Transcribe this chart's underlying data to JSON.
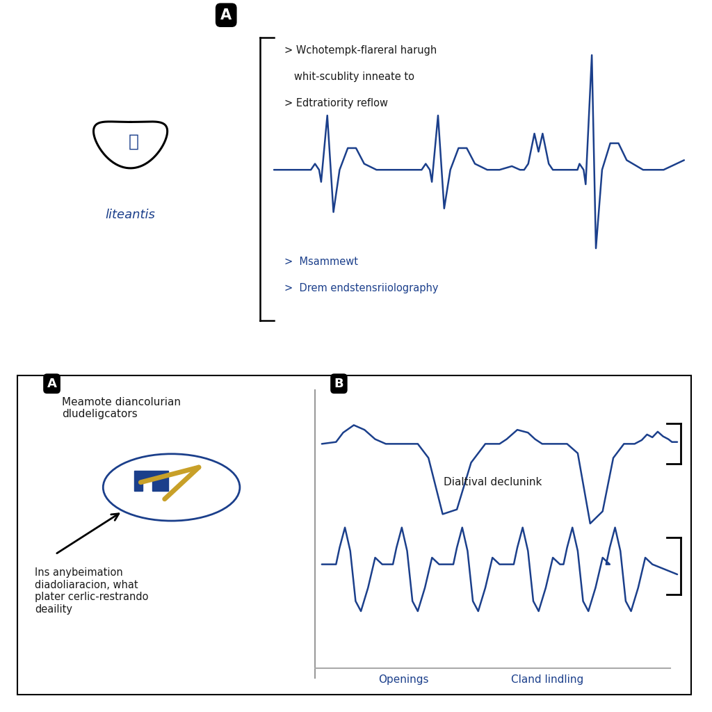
{
  "panel_A_label": "A",
  "panel_B_label": "B",
  "top_text_upper_1": "> Wchotempk-flareral harugh",
  "top_text_upper_2": "   whit-scublity inneate to",
  "top_text_upper_3": "> Edtratiority reflow",
  "top_text_lower_1": ">  Msammewt",
  "top_text_lower_2": ">  Drem endstensriiolography",
  "icon_label": "liteantis",
  "bottom_left_title": "Meamote diancolurian\ndludeligcators",
  "bottom_left_text": "Ins anybeimation\ndiadoliaracion, what\nplater cerlic-restrando\ndeaility",
  "bottom_right_label1": "Dialtival declunink",
  "bottom_x_label1": "Openings",
  "bottom_x_label2": "Cland lindling",
  "blue_color": "#1B3F8B",
  "gold_color": "#C8A028",
  "text_color": "#1a1a1a",
  "bg_color": "#ffffff"
}
